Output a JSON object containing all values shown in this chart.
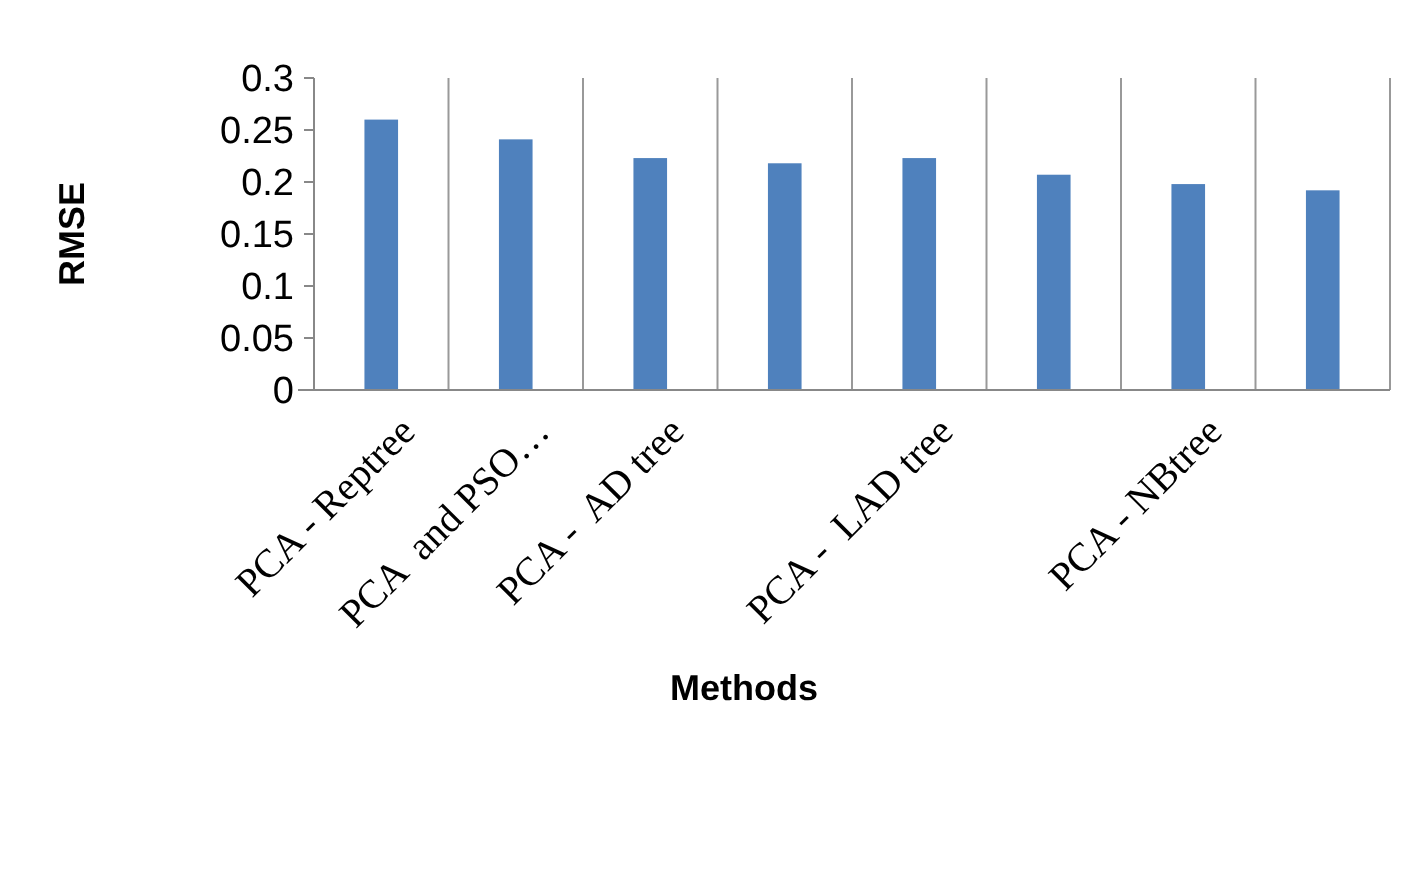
{
  "chart_data": {
    "type": "bar",
    "xlabel": "Methods",
    "ylabel": "RMSE",
    "categories": [
      "PCA - Reptree",
      "PCA  and PSO…",
      "PCA -  AD tree",
      null,
      "PCA -  LAD tree",
      null,
      "PCA - NBtree",
      null
    ],
    "values": [
      0.26,
      0.241,
      0.223,
      0.218,
      0.223,
      0.207,
      0.198,
      0.192
    ],
    "color": "#4f81bd",
    "ylim": [
      0,
      0.3
    ],
    "yticks": [
      0,
      0.05,
      0.1,
      0.15,
      0.2,
      0.25,
      0.3
    ],
    "grid": "x"
  }
}
